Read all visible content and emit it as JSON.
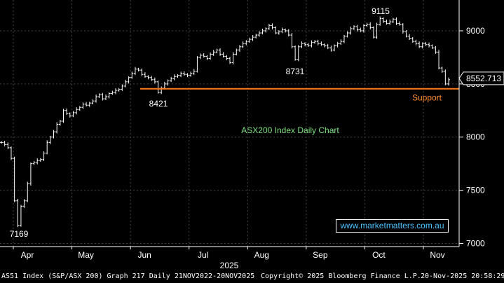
{
  "chart_data": {
    "type": "ohlc",
    "title": "ASX200 Index Daily Chart",
    "ylim": [
      6970,
      9290
    ],
    "yticks": [
      7000,
      7500,
      8000,
      8500,
      9000
    ],
    "x_month_labels": [
      "Apr",
      "May",
      "Jun",
      "Jul",
      "Aug",
      "Sep",
      "Oct",
      "Nov"
    ],
    "year_label": "2025",
    "last_price": "8552.713",
    "support_level": 8455,
    "support_label": "Support",
    "annotations": [
      "7169",
      "8421",
      "8731",
      "9115"
    ],
    "series": [
      {
        "values": [
          7950,
          7930,
          7900,
          7800,
          7400,
          7169,
          7350,
          7400,
          7560,
          7750,
          7760,
          7780,
          7790,
          7850,
          7950,
          8000,
          8050,
          8120,
          8150,
          8250,
          8220,
          8200,
          8230,
          8260,
          8280,
          8310,
          8300,
          8320,
          8340,
          8380,
          8400,
          8360,
          8380,
          8410,
          8420,
          8440,
          8450,
          8480,
          8520,
          8560,
          8600,
          8640,
          8630,
          8590,
          8570,
          8560,
          8540,
          8520,
          8421,
          8460,
          8500,
          8530,
          8550,
          8570,
          8580,
          8600,
          8590,
          8580,
          8600,
          8620,
          8750,
          8770,
          8760,
          8740,
          8780,
          8800,
          8820,
          8780,
          8760,
          8740,
          8700,
          8780,
          8820,
          8850,
          8880,
          8900,
          8920,
          8940,
          8960,
          8980,
          9000,
          9020,
          9050,
          9030,
          8980,
          8990,
          9010,
          9000,
          8960,
          8850,
          8731,
          8850,
          8880,
          8870,
          8860,
          8890,
          8900,
          8880,
          8870,
          8860,
          8840,
          8820,
          8860,
          8880,
          8900,
          8950,
          8980,
          9020,
          9040,
          9010,
          9000,
          9050,
          9060,
          9030,
          8940,
          9060,
          9115,
          9090,
          9070,
          9085,
          9110,
          9070,
          9060,
          8990,
          8950,
          8930,
          8900,
          8880,
          8850,
          8880,
          8870,
          8860,
          8840,
          8800,
          8650,
          8620,
          8500,
          8540
        ]
      }
    ]
  },
  "watermark": "www.marketmatters.com.au",
  "footer": {
    "left": "AS51 Index (S&P/ASX 200) Graph 217 Daily 21NOV2022-20NOV2025",
    "center": "Copyright© 2025 Bloomberg Finance L.P.",
    "right": "20-Nov-2025 20:58:29"
  }
}
